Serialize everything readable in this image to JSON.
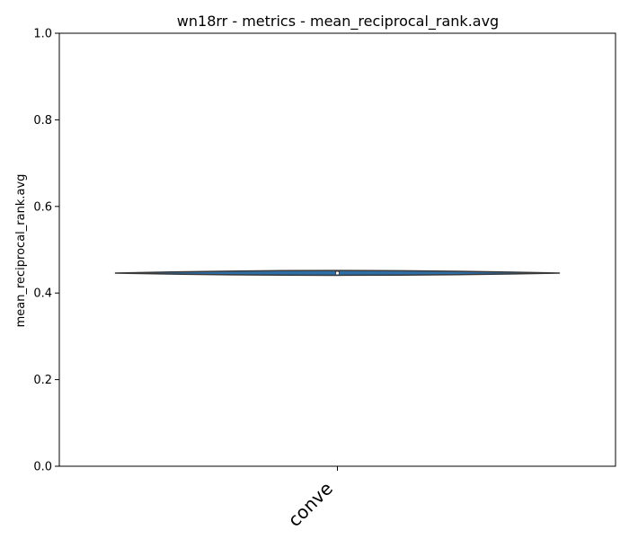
{
  "chart_data": {
    "type": "violin",
    "title": "wn18rr - metrics - mean_reciprocal_rank.avg",
    "xlabel": "",
    "ylabel": "mean_reciprocal_rank.avg",
    "ylim": [
      0,
      1
    ],
    "yticks": [
      0.0,
      0.2,
      0.4,
      0.6,
      0.8,
      1.0
    ],
    "ytick_labels": [
      "0.0",
      "0.2",
      "0.4",
      "0.6",
      "0.8",
      "1.0"
    ],
    "categories": [
      "conve"
    ],
    "series": [
      {
        "category": "conve",
        "min": 0.442,
        "q1": 0.444,
        "median": 0.446,
        "q3": 0.451,
        "max": 0.451,
        "density_low": 0.441,
        "density_high": 0.452
      }
    ],
    "grid": false,
    "legend": "none",
    "colors": {
      "violin_fill": "#2d6ea6",
      "violin_edge": "#3a3a3a",
      "box": "#3a3a3a",
      "median_dot": "#ffffff"
    }
  }
}
